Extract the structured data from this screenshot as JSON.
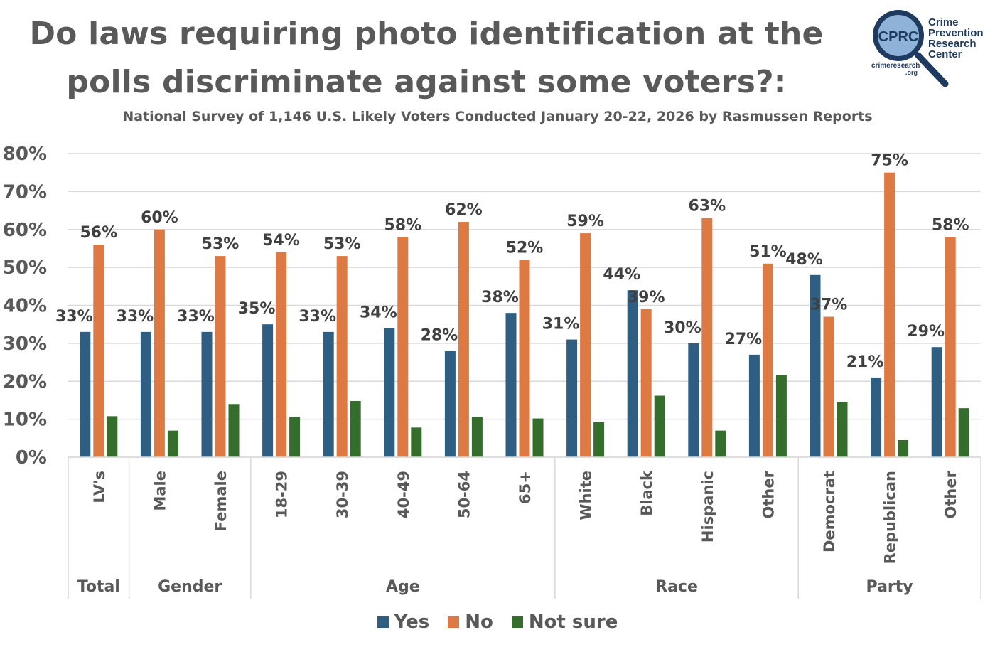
{
  "header": {
    "title_line1": "Do laws requiring photo identification at the",
    "title_line2": "polls discriminate against some voters?:",
    "subtitle": "National Survey of 1,146 U.S. Likely Voters Conducted January 20-22, 2026 by Rasmussen Reports"
  },
  "logo": {
    "acronym": "CPRC",
    "name_lines": [
      "Crime",
      "Prevention",
      "Research",
      "Center"
    ],
    "url_line1": "crimeresearch",
    "url_line2": ".org",
    "icon": "magnifying-glass-icon"
  },
  "colors": {
    "yes": "#2e5f82",
    "no": "#dd7a44",
    "not_sure": "#356d2d",
    "grid": "#d9d9d9",
    "text": "#595959",
    "label": "#404040"
  },
  "chart_data": {
    "type": "bar",
    "title": "Do laws requiring photo identification at the polls discriminate against some voters?:",
    "subtitle": "National Survey of 1,146 U.S. Likely Voters Conducted January 20-22, 2026 by Rasmussen Reports",
    "xlabel": "",
    "ylabel": "",
    "ylim": [
      0,
      80
    ],
    "yticks": [
      "0%",
      "10%",
      "20%",
      "30%",
      "40%",
      "50%",
      "60%",
      "70%",
      "80%"
    ],
    "grid": true,
    "legend_position": "bottom",
    "categories": [
      "LV's",
      "Male",
      "Female",
      "18-29",
      "30-39",
      "40-49",
      "50-64",
      "65+",
      "White",
      "Black",
      "Hispanic",
      "Other",
      "Democrat",
      "Republican",
      "Other"
    ],
    "groups": [
      {
        "label": "Total",
        "count": 1
      },
      {
        "label": "Gender",
        "count": 2
      },
      {
        "label": "Age",
        "count": 5
      },
      {
        "label": "Race",
        "count": 4
      },
      {
        "label": "Party",
        "count": 3
      }
    ],
    "series": [
      {
        "name": "Yes",
        "values": [
          33,
          33,
          33,
          35,
          33,
          34,
          28,
          38,
          31,
          44,
          30,
          27,
          48,
          21,
          29
        ],
        "labels": [
          "33%",
          "33%",
          "33%",
          "35%",
          "33%",
          "34%",
          "28%",
          "38%",
          "31%",
          "44%",
          "30%",
          "27%",
          "48%",
          "21%",
          "29%"
        ]
      },
      {
        "name": "No",
        "values": [
          56,
          60,
          53,
          54,
          53,
          58,
          62,
          52,
          59,
          39,
          63,
          51,
          37,
          75,
          58
        ],
        "labels": [
          "56%",
          "60%",
          "53%",
          "54%",
          "53%",
          "58%",
          "62%",
          "52%",
          "59%",
          "39%",
          "63%",
          "51%",
          "37%",
          "75%",
          "58%"
        ]
      },
      {
        "name": "Not sure",
        "values": [
          10.8,
          7,
          14,
          10.6,
          14.8,
          7.8,
          10.6,
          10.2,
          9.2,
          16.2,
          7,
          21.6,
          14.6,
          4.5,
          12.9
        ],
        "labels": []
      }
    ]
  }
}
